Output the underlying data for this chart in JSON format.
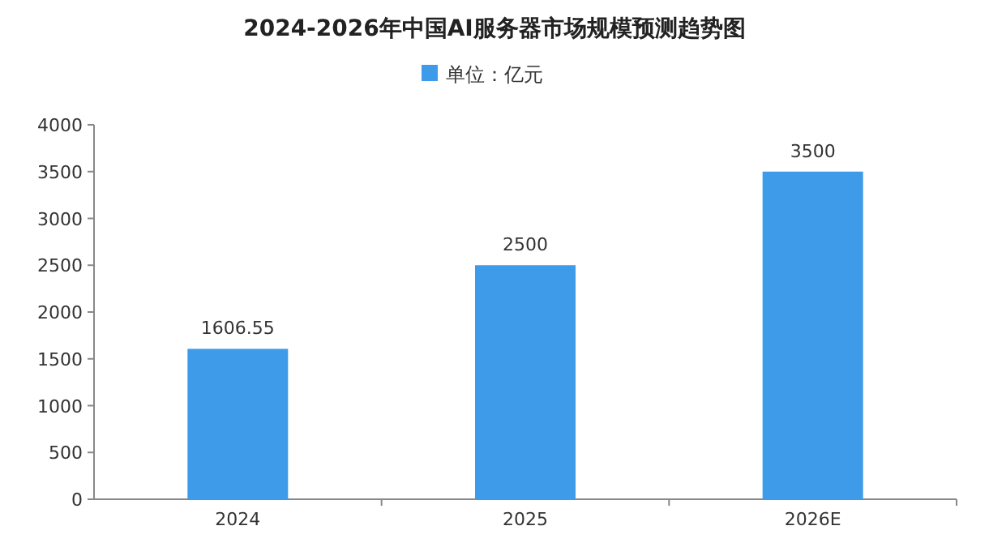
{
  "chart_data": {
    "type": "bar",
    "title": "2024-2026年中国AI服务器市场规模预测趋势图",
    "categories": [
      "2024",
      "2025",
      "2026E"
    ],
    "series": [
      {
        "name": "单位：亿元",
        "color": "#3d9be9",
        "values": [
          1606.55,
          2500,
          3500
        ]
      }
    ],
    "ylim": [
      0,
      4000
    ],
    "yticks": [
      0,
      500,
      1000,
      1500,
      2000,
      2500,
      3000,
      3500,
      4000
    ],
    "data_labels": true,
    "legend": "top"
  }
}
